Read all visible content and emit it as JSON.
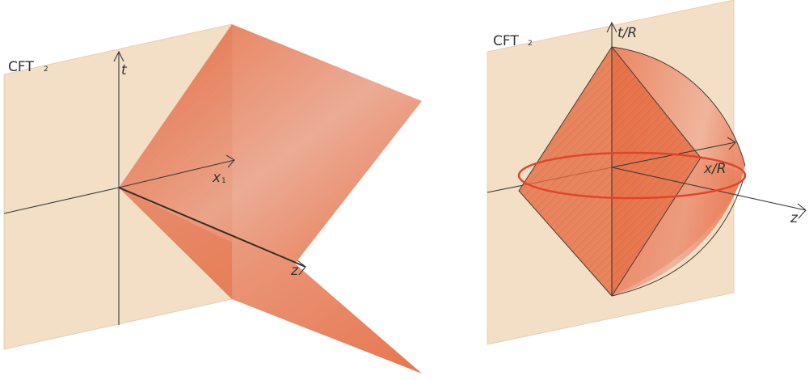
{
  "colors": {
    "plane": "#f2dfc6",
    "plane_edge": "#e6cba9",
    "wedge": "#e9744a",
    "wedge_light": "#f2b9a3",
    "hatch": "#b54a2f",
    "ellipse": "#e0442a",
    "axis": "#3a3a3a"
  },
  "left_panel": {
    "plane_label": "CFT",
    "plane_label_sub": "2",
    "t_axis": "t",
    "x_axis": "x",
    "x_axis_sub": "1",
    "z_axis": "z"
  },
  "right_panel": {
    "plane_label": "CFT",
    "plane_label_sub": "2",
    "t_axis": "t/R",
    "x_axis": "x/R",
    "z_axis": "z"
  }
}
